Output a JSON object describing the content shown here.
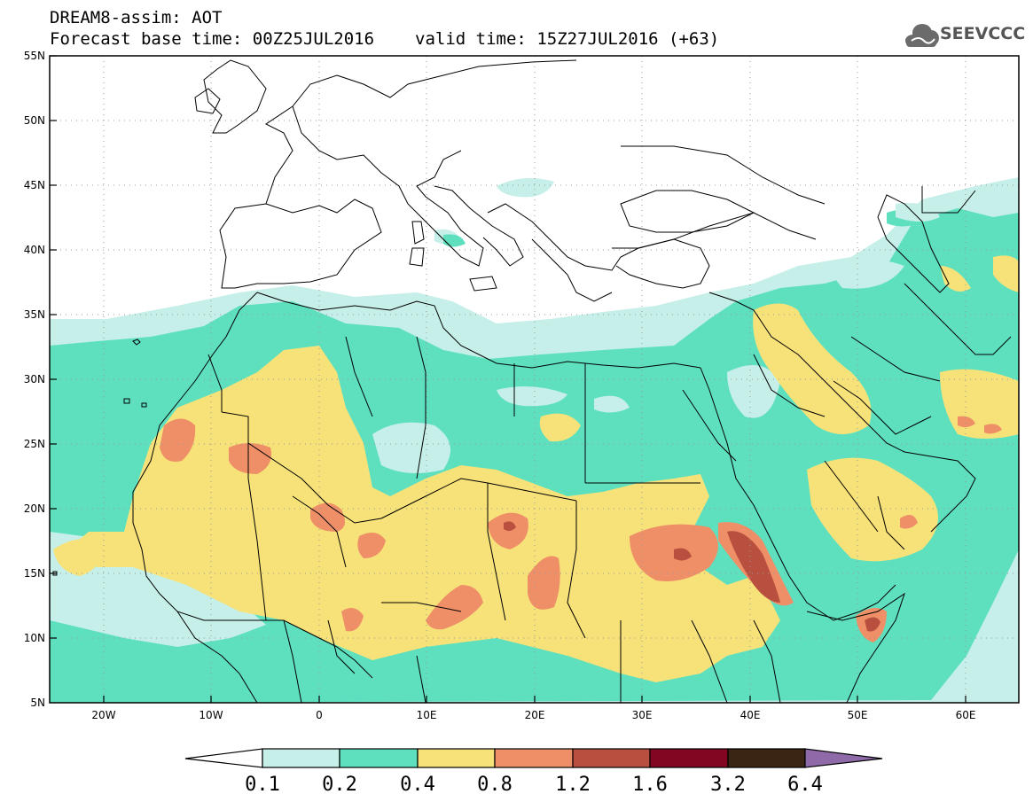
{
  "header": {
    "title": "DREAM8-assim: AOT",
    "base_time": "Forecast base time: 00Z25JUL2016",
    "valid_time": "valid time: 15Z27JUL2016 (+63)"
  },
  "logo": {
    "text": "SEEVCCC",
    "icon": "cloud-icon"
  },
  "axes": {
    "lat_labels": [
      "55N",
      "50N",
      "45N",
      "40N",
      "35N",
      "30N",
      "25N",
      "20N",
      "15N",
      "10N",
      "5N"
    ],
    "lon_labels": [
      "20W",
      "10W",
      "0",
      "10E",
      "20E",
      "30E",
      "40E",
      "50E",
      "60E"
    ],
    "lat_range": [
      5,
      55
    ],
    "lon_range": [
      -25,
      65
    ],
    "grid": "dotted"
  },
  "legend": {
    "thresholds": [
      "0.1",
      "0.2",
      "0.4",
      "0.8",
      "1.2",
      "1.6",
      "3.2",
      "6.4"
    ],
    "colors": [
      "#ffffff",
      "#c5efe8",
      "#5ee0bf",
      "#f7e27a",
      "#ee8f67",
      "#b9503f",
      "#820621",
      "#3a2414",
      "#8e6aa8"
    ]
  },
  "colors": {
    "aot_0_1": "#c5efe8",
    "aot_0_2": "#5ee0bf",
    "aot_0_4": "#f7e27a",
    "aot_0_8": "#ee8f67",
    "aot_1_2": "#b9503f",
    "border": "#000000"
  }
}
